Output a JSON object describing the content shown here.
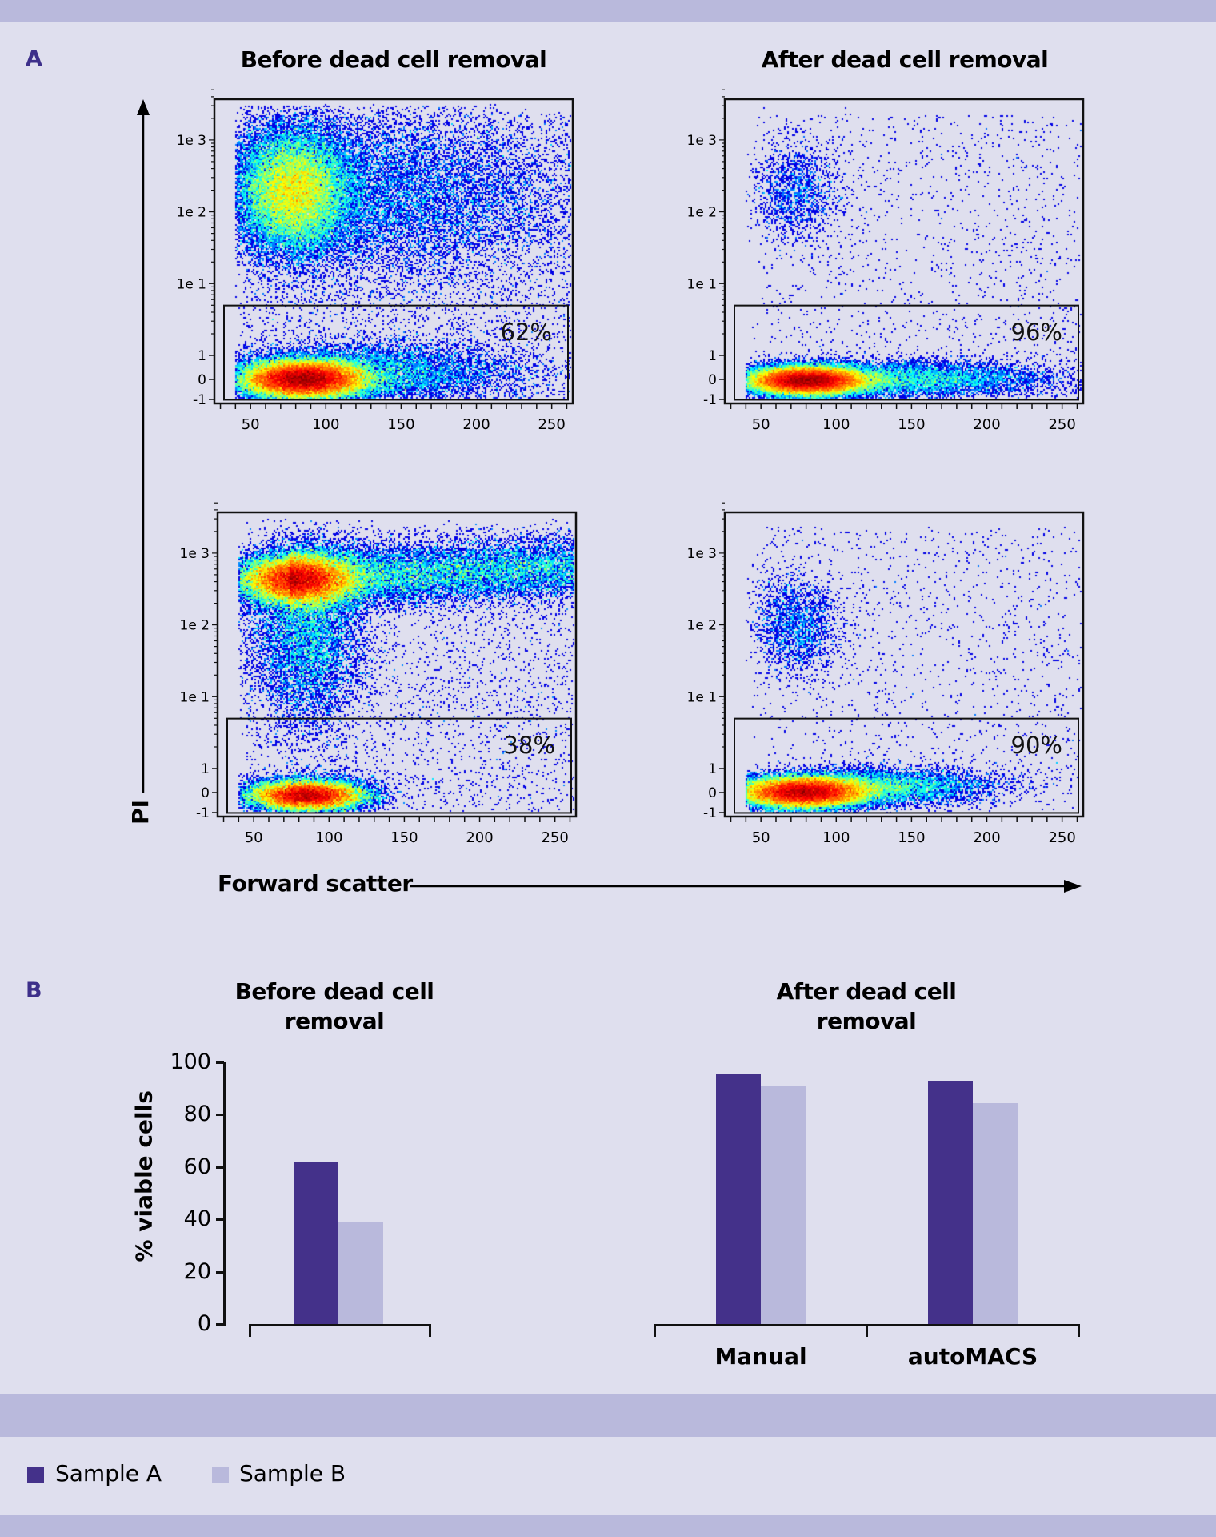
{
  "panel_a": {
    "letter": "A",
    "titles": [
      "Before dead cell removal",
      "After dead cell removal"
    ],
    "y_axis_label": "PI",
    "x_axis_label": "Forward scatter"
  },
  "panel_b": {
    "letter": "B",
    "title_before": [
      "Before dead cell",
      "removal"
    ],
    "title_after": [
      "After dead cell",
      "removal"
    ],
    "y_axis_label": "% viable cells"
  },
  "legend": [
    {
      "label": "Sample A",
      "color": "#44318a"
    },
    {
      "label": "Sample B",
      "color": "#b9b9dc"
    }
  ],
  "colors": {
    "band": "#b9b9dc",
    "background": "#dfdfee",
    "letter": "#3d2f8a"
  },
  "chart_data": [
    {
      "type": "scatter",
      "title": "Before dead cell removal",
      "density_colormap": "jet",
      "y_scale": "biexponential",
      "x_ticks": [
        "50",
        "100",
        "150",
        "200",
        "250"
      ],
      "y_ticks": [
        "-1",
        "0",
        "1",
        "1e 1",
        "1e 2",
        "1e 3"
      ],
      "xlim": [
        26,
        264
      ],
      "gate_label": "62%",
      "gate_value": 62
    },
    {
      "type": "scatter",
      "title": "After dead cell removal",
      "density_colormap": "jet",
      "y_scale": "biexponential",
      "x_ticks": [
        "50",
        "100",
        "150",
        "200",
        "250"
      ],
      "y_ticks": [
        "-1",
        "0",
        "1",
        "1e 1",
        "1e 2",
        "1e 3"
      ],
      "xlim": [
        26,
        264
      ],
      "gate_label": "96%",
      "gate_value": 96
    },
    {
      "type": "scatter",
      "title": "Before dead cell removal",
      "density_colormap": "jet",
      "y_scale": "biexponential",
      "x_ticks": [
        "50",
        "100",
        "150",
        "200",
        "250"
      ],
      "y_ticks": [
        "-1",
        "0",
        "1",
        "1e 1",
        "1e 2",
        "1e 3"
      ],
      "xlim": [
        26,
        264
      ],
      "gate_label": "38%",
      "gate_value": 38
    },
    {
      "type": "scatter",
      "title": "After dead cell removal",
      "density_colormap": "jet",
      "y_scale": "biexponential",
      "x_ticks": [
        "50",
        "100",
        "150",
        "200",
        "250"
      ],
      "y_ticks": [
        "-1",
        "0",
        "1",
        "1e 1",
        "1e 2",
        "1e 3"
      ],
      "xlim": [
        26,
        264
      ],
      "gate_label": "90%",
      "gate_value": 90
    },
    {
      "type": "bar",
      "title": "Before dead cell removal",
      "categories": [
        ""
      ],
      "series": [
        {
          "name": "Sample A",
          "values": [
            62
          ]
        },
        {
          "name": "Sample B",
          "values": [
            39
          ]
        }
      ],
      "ylabel": "% viable cells",
      "ylim": [
        0,
        100
      ],
      "y_ticks": [
        "0",
        "20",
        "40",
        "60",
        "80",
        "100"
      ]
    },
    {
      "type": "bar",
      "title": "After dead cell removal",
      "categories": [
        "Manual",
        "autoMACS"
      ],
      "series": [
        {
          "name": "Sample A",
          "values": [
            95.5,
            93
          ]
        },
        {
          "name": "Sample B",
          "values": [
            91,
            84.5
          ]
        }
      ],
      "ylabel": "% viable cells",
      "ylim": [
        0,
        100
      ]
    }
  ]
}
